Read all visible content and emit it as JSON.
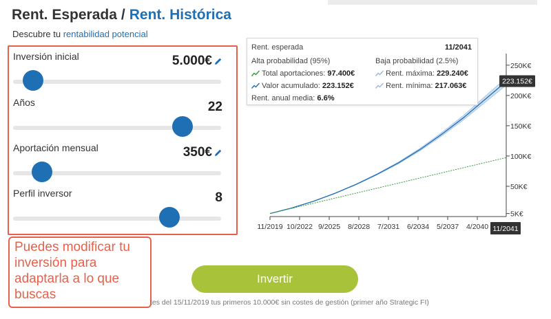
{
  "header": {
    "tab_expected": "Rent. Esperada",
    "separator": "/",
    "tab_historic": "Rent. Histórica",
    "subtitle_prefix": "Descubre tu",
    "subtitle_link": "rentabilidad potencial"
  },
  "controls": [
    {
      "label": "Inversión inicial",
      "value": "5.000€",
      "editable": true,
      "position": 0.05
    },
    {
      "label": "Años",
      "value": "22",
      "editable": false,
      "position": 0.85
    },
    {
      "label": "Aportación mensual",
      "value": "350€",
      "editable": true,
      "position": 0.1
    },
    {
      "label": "Perfil inversor",
      "value": "8",
      "editable": false,
      "position": 0.78
    }
  ],
  "note": {
    "text": "Puedes modificar tu inversión para adaptarla a lo que buscas"
  },
  "cta": {
    "label": "Invertir"
  },
  "footnote": "tes del 15/11/2019 tus primeros 10.000€ sin costes de gestión (primer año Strategic FI)",
  "tooltip": {
    "title": "Rent. esperada",
    "date": "11/2041",
    "high_label": "Alta probabilidad (95%)",
    "low_label": "Baja probabilidad (2.5%)",
    "total_label": "Total aportaciones:",
    "total_value": "97.400€",
    "max_label": "Rent. máxima:",
    "max_value": "229.240€",
    "accum_label": "Valor acumulado:",
    "accum_value": "223.152€",
    "min_label": "Rent. mínima:",
    "min_value": "217.063€",
    "annual_label": "Rent. anual media:",
    "annual_value": "6.6%"
  },
  "colors": {
    "accent": "#1f6fb5",
    "annotation": "#e8604a",
    "cta": "#a8c33a",
    "contributions": "#3a9a3a"
  },
  "chart_data": {
    "type": "line",
    "x_ticks": [
      "11/2019",
      "10/2022",
      "9/2025",
      "8/2028",
      "7/2031",
      "6/2034",
      "5/2037",
      "4/2040"
    ],
    "x_end_label": "11/2041",
    "y_ticks": [
      "5K€",
      "50K€",
      "100K€",
      "150K€",
      "200K€",
      "250K€"
    ],
    "y_tick_values": [
      5000,
      50000,
      100000,
      150000,
      200000,
      250000
    ],
    "ylim": [
      0,
      260000
    ],
    "current_value_label": "223.152€",
    "series": [
      {
        "x": [
          0,
          2,
          4,
          6,
          8,
          10,
          12,
          14,
          16,
          18,
          20,
          22
        ],
        "values": [
          5000,
          14000,
          25000,
          38000,
          53000,
          70000,
          89000,
          111000,
          136000,
          163000,
          193000,
          223152
        ]
      },
      {
        "x": [
          0,
          22
        ],
        "values": [
          5000,
          97400
        ]
      },
      {
        "x": [
          0,
          22
        ],
        "values": [
          5000,
          229240
        ]
      },
      {
        "x": [
          0,
          22
        ],
        "values": [
          5000,
          217063
        ]
      }
    ]
  }
}
